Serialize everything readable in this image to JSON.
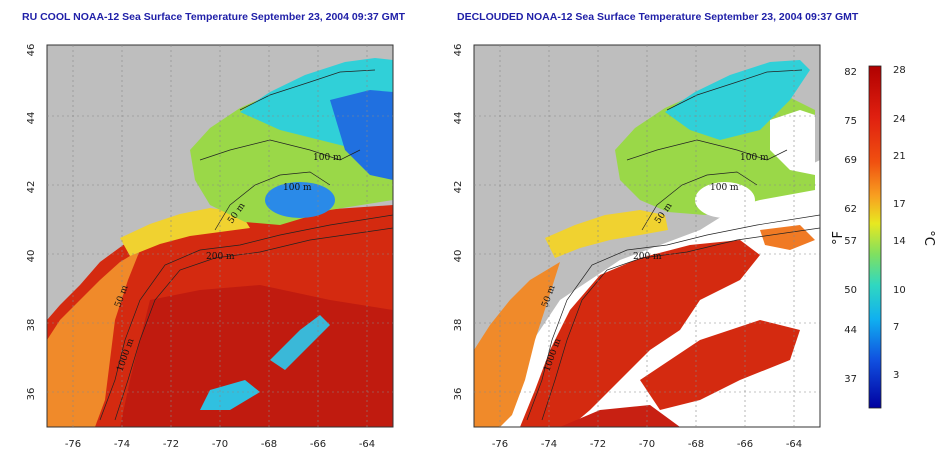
{
  "titles": {
    "left": "RU COOL NOAA-12 Sea Surface Temperature September 23, 2004 09:37 GMT",
    "right": "DECLOUDED NOAA-12 Sea Surface Temperature September 23, 2004 09:37 GMT"
  },
  "axes": {
    "lon_ticks": [
      "-76",
      "-74",
      "-72",
      "-70",
      "-68",
      "-66",
      "-64"
    ],
    "lat_ticks": [
      "46",
      "44",
      "42",
      "40",
      "38",
      "36"
    ]
  },
  "contour_labels": {
    "left": [
      "100 m",
      "100 m",
      "50 m",
      "200 m",
      "50 m",
      "1000 m"
    ],
    "right": [
      "100 m",
      "100 m",
      "50 m",
      "200 m",
      "50 m",
      "1000 m"
    ]
  },
  "colorbar": {
    "fahrenheit_label": "°F",
    "celsius_label": "°C",
    "fahrenheit_ticks": [
      "82",
      "75",
      "69",
      "62",
      "57",
      "50",
      "44",
      "37"
    ],
    "celsius_ticks": [
      "28",
      "24",
      "21",
      "17",
      "14",
      "10",
      "7",
      "3"
    ]
  },
  "colors": {
    "land": "#bebebe",
    "cloud": "#ffffff",
    "warm": "#d42a10",
    "hot": "#b81610",
    "title": "#2020a8"
  }
}
